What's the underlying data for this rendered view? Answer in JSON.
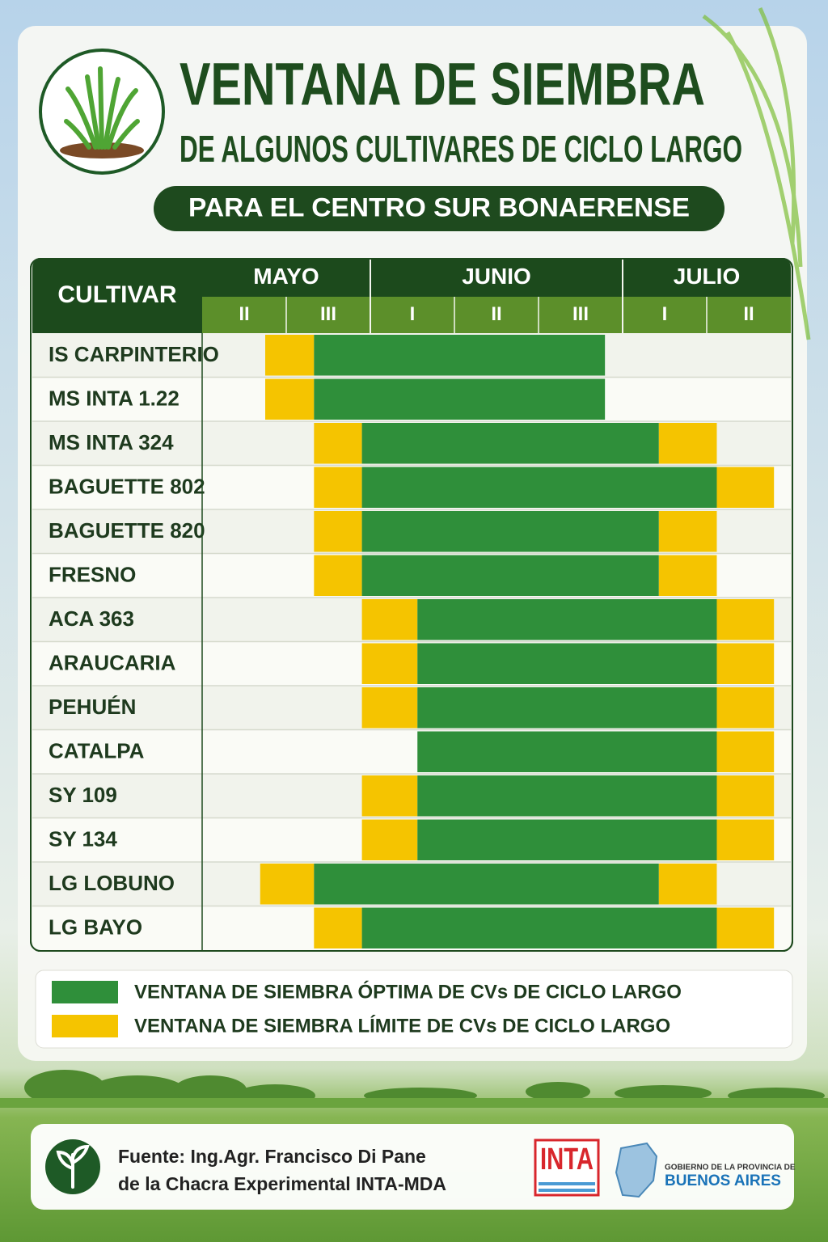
{
  "header": {
    "title": "VENTANA DE SIEMBRA",
    "subtitle": "DE ALGUNOS CULTIVARES DE CICLO LARGO",
    "region": "PARA EL CENTRO SUR BONAERENSE"
  },
  "table": {
    "cultivar_header": "CULTIVAR",
    "months": [
      {
        "name": "MAYO",
        "decades": [
          "II",
          "III"
        ]
      },
      {
        "name": "JUNIO",
        "decades": [
          "I",
          "II",
          "III"
        ]
      },
      {
        "name": "JULIO",
        "decades": [
          "I",
          "II"
        ]
      }
    ],
    "rows": [
      {
        "cultivar": "IS CARPINTERIO",
        "limit": [
          [
            0.75,
            1.33
          ]
        ],
        "optimal": [
          1.33,
          4.79
        ]
      },
      {
        "cultivar": "MS INTA 1.22",
        "limit": [
          [
            0.75,
            1.33
          ]
        ],
        "optimal": [
          1.33,
          4.79
        ]
      },
      {
        "cultivar": "MS INTA 324",
        "limit": [
          [
            1.33,
            1.9
          ],
          [
            5.43,
            6.12
          ]
        ],
        "optimal": [
          1.9,
          5.43
        ]
      },
      {
        "cultivar": "BAGUETTE 802",
        "limit": [
          [
            1.33,
            1.9
          ],
          [
            6.12,
            6.8
          ]
        ],
        "optimal": [
          1.9,
          6.12
        ]
      },
      {
        "cultivar": "BAGUETTE 820",
        "limit": [
          [
            1.33,
            1.9
          ],
          [
            5.43,
            6.12
          ]
        ],
        "optimal": [
          1.9,
          5.43
        ]
      },
      {
        "cultivar": "FRESNO",
        "limit": [
          [
            1.33,
            1.9
          ],
          [
            5.43,
            6.12
          ]
        ],
        "optimal": [
          1.9,
          5.43
        ]
      },
      {
        "cultivar": "ACA 363",
        "limit": [
          [
            1.9,
            2.56
          ],
          [
            6.12,
            6.8
          ]
        ],
        "optimal": [
          2.56,
          6.12
        ]
      },
      {
        "cultivar": "ARAUCARIA",
        "limit": [
          [
            1.9,
            2.56
          ],
          [
            6.12,
            6.8
          ]
        ],
        "optimal": [
          2.56,
          6.12
        ]
      },
      {
        "cultivar": "PEHUÉN",
        "limit": [
          [
            1.9,
            2.56
          ],
          [
            6.12,
            6.8
          ]
        ],
        "optimal": [
          2.56,
          6.12
        ]
      },
      {
        "cultivar": "CATALPA",
        "limit": [
          [
            6.12,
            6.8
          ]
        ],
        "optimal": [
          2.56,
          6.12
        ]
      },
      {
        "cultivar": "SY 109",
        "limit": [
          [
            1.9,
            2.56
          ],
          [
            6.12,
            6.8
          ]
        ],
        "optimal": [
          2.56,
          6.12
        ]
      },
      {
        "cultivar": "SY 134",
        "limit": [
          [
            1.9,
            2.56
          ],
          [
            6.12,
            6.8
          ]
        ],
        "optimal": [
          2.56,
          6.12
        ]
      },
      {
        "cultivar": "LG LOBUNO",
        "limit": [
          [
            0.69,
            1.33
          ],
          [
            5.43,
            6.12
          ]
        ],
        "optimal": [
          1.33,
          5.43
        ]
      },
      {
        "cultivar": "LG BAYO",
        "limit": [
          [
            1.33,
            1.9
          ],
          [
            6.12,
            6.8
          ]
        ],
        "optimal": [
          1.9,
          6.12
        ]
      }
    ]
  },
  "legend": {
    "optimal": {
      "label": "VENTANA DE SIEMBRA ÓPTIMA DE CVs DE CICLO LARGO",
      "color": "#2f8f3a"
    },
    "limit": {
      "label": "VENTANA DE SIEMBRA LÍMITE DE CVs DE CICLO LARGO",
      "color": "#f5c400"
    }
  },
  "footer": {
    "source_line1": "Fuente: Ing.Agr. Francisco Di Pane",
    "source_line2": "de la Chacra Experimental INTA-MDA",
    "inta": "INTA",
    "gov_line1": "GOBIERNO DE LA PROVINCIA DE",
    "gov_line2": "BUENOS AIRES"
  }
}
